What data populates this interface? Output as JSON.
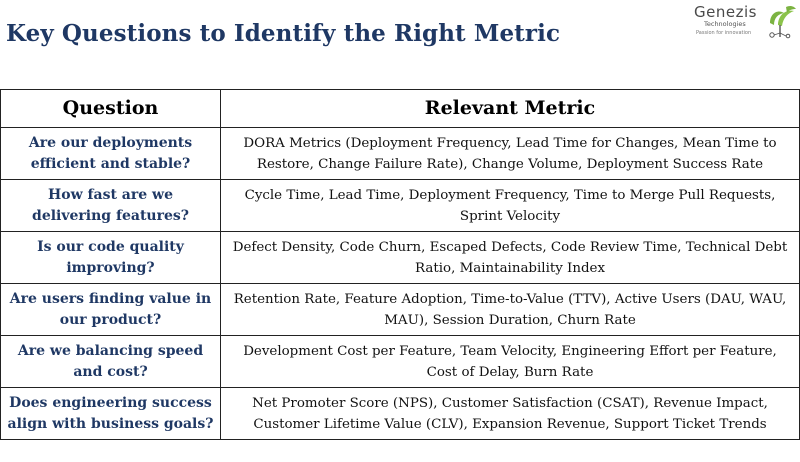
{
  "page": {
    "title": "Key Questions to Identify the Right Metric"
  },
  "logo": {
    "name": "Genezis",
    "subtitle": "Technologies",
    "tagline": "Passion for innovation",
    "brand_color": "#7cb342"
  },
  "table": {
    "headers": {
      "question": "Question",
      "metric": "Relevant Metric"
    },
    "rows": [
      {
        "question": "Are our deployments efficient and stable?",
        "metric": "DORA Metrics (Deployment Frequency, Lead Time for Changes, Mean Time to Restore, Change Failure Rate), Change Volume, Deployment Success Rate"
      },
      {
        "question": "How fast are we delivering features?",
        "metric": "Cycle Time, Lead Time, Deployment Frequency, Time to Merge Pull Requests, Sprint Velocity"
      },
      {
        "question": "Is our code quality improving?",
        "metric": "Defect Density, Code Churn, Escaped Defects, Code Review Time, Technical Debt Ratio, Maintainability Index"
      },
      {
        "question": "Are users finding value in our product?",
        "metric": "Retention Rate, Feature Adoption, Time-to-Value (TTV), Active Users (DAU, WAU, MAU), Session Duration, Churn Rate"
      },
      {
        "question": "Are we balancing speed and cost?",
        "metric": "Development Cost per Feature, Team Velocity, Engineering Effort per Feature, Cost of Delay, Burn Rate"
      },
      {
        "question": "Does engineering success align with business goals?",
        "metric": "Net Promoter Score (NPS), Customer Satisfaction (CSAT), Revenue Impact, Customer Lifetime Value (CLV), Expansion Revenue, Support Ticket Trends"
      }
    ]
  },
  "colors": {
    "title": "#1f3864",
    "question_text": "#1f3864",
    "border": "#222222"
  }
}
